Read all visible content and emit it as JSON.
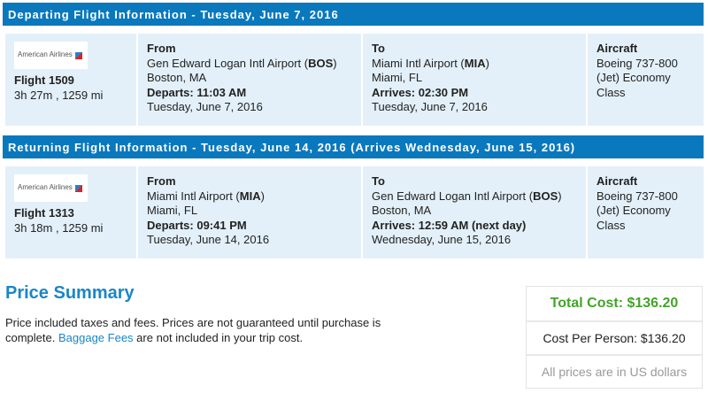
{
  "departing": {
    "header": "Departing Flight Information - Tuesday, June 7, 2016",
    "airline": "American Airlines",
    "flight": "Flight 1509",
    "duration": "3h 27m , 1259 mi",
    "from": {
      "label": "From",
      "airport": "Gen Edward Logan Intl Airport (",
      "code": "BOS",
      "close": ")",
      "city": "Boston, MA",
      "time_label": "Departs: 11:03 AM",
      "date": "Tuesday, June 7, 2016"
    },
    "to": {
      "label": "To",
      "airport": "Miami Intl Airport (",
      "code": "MIA",
      "close": ")",
      "city": "Miami, FL",
      "time_label": "Arrives: 02:30 PM",
      "date": "Tuesday, June 7, 2016"
    },
    "aircraft": {
      "label": "Aircraft",
      "value": "Boeing 737-800 (Jet) Economy Class"
    }
  },
  "returning": {
    "header": "Returning Flight Information - Tuesday, June 14, 2016 (Arrives Wednesday, June 15, 2016)",
    "airline": "American Airlines",
    "flight": "Flight 1313",
    "duration": "3h 18m , 1259 mi",
    "from": {
      "label": "From",
      "airport": "Miami Intl Airport (",
      "code": "MIA",
      "close": ")",
      "city": "Miami, FL",
      "time_label": "Departs: 09:41 PM",
      "date": "Tuesday, June 14, 2016"
    },
    "to": {
      "label": "To",
      "airport": "Gen Edward Logan Intl Airport (",
      "code": "BOS",
      "close": ")",
      "city": "Boston, MA",
      "time_label": "Arrives: 12:59 AM (next day)",
      "date": "Wednesday, June 15, 2016"
    },
    "aircraft": {
      "label": "Aircraft",
      "value": "Boeing 737-800 (Jet) Economy Class"
    }
  },
  "price": {
    "title": "Price Summary",
    "text1": "Price included taxes and fees. Prices are not guaranteed until purchase is complete. ",
    "link": "Baggage Fees",
    "text2": " are not included in your trip cost.",
    "total": "Total Cost: $136.20",
    "per_person": "Cost Per Person: $136.20",
    "currency_note": "All prices are in US dollars"
  },
  "colors": {
    "header": "#0a78bd",
    "card": "#e3f0f9",
    "total": "#43a32a",
    "link": "#1a86c8"
  }
}
